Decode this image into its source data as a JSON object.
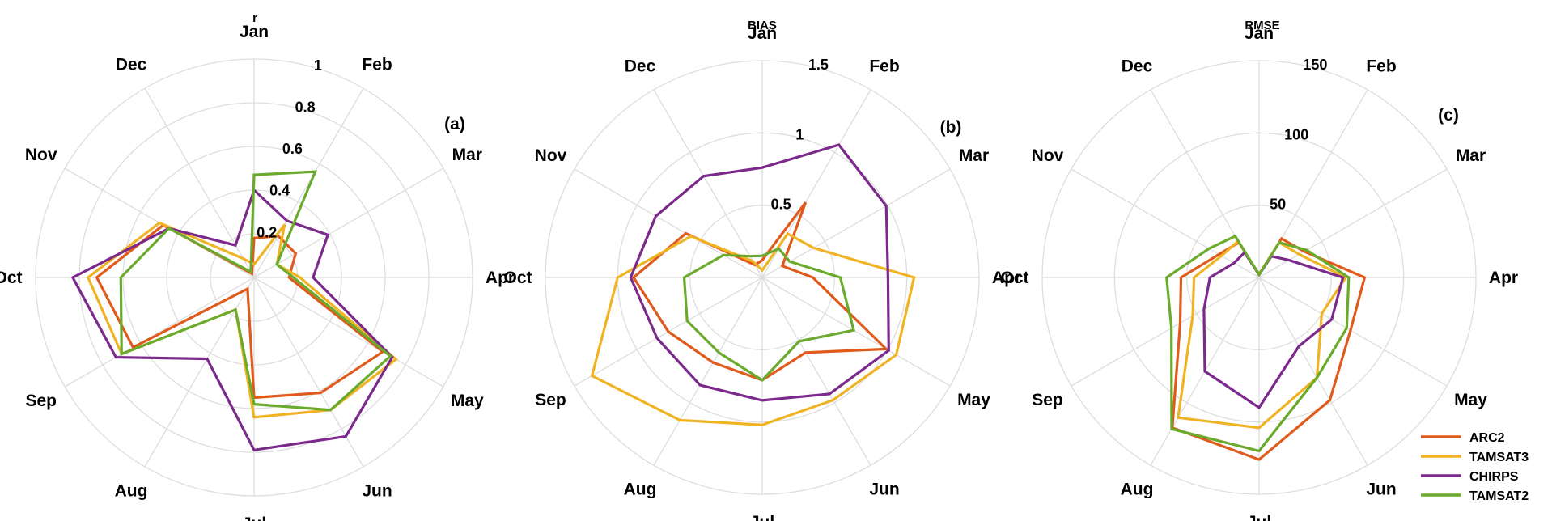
{
  "colors": {
    "ARC2": "#e05a1c",
    "TAMSAT3": "#f0b323",
    "CHIRPS": "#7b2a8c",
    "TAMSAT2": "#6aaa2c",
    "grid": "#dddddd"
  },
  "legend": [
    "ARC2",
    "TAMSAT3",
    "CHIRPS",
    "TAMSAT2"
  ],
  "chart_data": [
    {
      "type": "radar",
      "panel": "(a)",
      "title": "r",
      "categories": [
        "Jan",
        "Feb",
        "Mar",
        "Apr",
        "May",
        "Jun",
        "Jul",
        "Aug",
        "Sep",
        "Oct",
        "Nov",
        "Dec"
      ],
      "rlim": [
        0,
        1
      ],
      "rings": [
        0.2,
        0.4,
        0.6,
        0.8,
        1.0
      ],
      "ring_labels": [
        "0.2",
        "0.4",
        "0.6",
        "0.8",
        "1"
      ],
      "grid": true,
      "series": [
        {
          "name": "ARC2",
          "values": [
            0.18,
            0.22,
            0.22,
            0.16,
            0.68,
            0.61,
            0.55,
            0.06,
            0.64,
            0.72,
            0.48,
            0.02
          ]
        },
        {
          "name": "TAMSAT3",
          "values": [
            0.06,
            0.28,
            0.12,
            0.21,
            0.75,
            0.7,
            0.64,
            0.17,
            0.7,
            0.76,
            0.5,
            0.1
          ]
        },
        {
          "name": "CHIRPS",
          "values": [
            0.4,
            0.3,
            0.39,
            0.27,
            0.73,
            0.84,
            0.79,
            0.43,
            0.73,
            0.83,
            0.45,
            0.17
          ]
        },
        {
          "name": "TAMSAT2",
          "values": [
            0.47,
            0.56,
            0.12,
            0.18,
            0.72,
            0.7,
            0.58,
            0.17,
            0.7,
            0.61,
            0.45,
            0.03
          ]
        }
      ]
    },
    {
      "type": "radar",
      "panel": "(b)",
      "title": "BIAS",
      "categories": [
        "Jan",
        "Feb",
        "Mar",
        "Apr",
        "May",
        "Jun",
        "Jul",
        "Aug",
        "Sep",
        "Oct",
        "Nov",
        "Dec"
      ],
      "rlim": [
        0,
        1.5
      ],
      "rings": [
        0.5,
        1.0,
        1.5
      ],
      "ring_labels": [
        "0.5",
        "1",
        "1.5"
      ],
      "grid": true,
      "series": [
        {
          "name": "ARC2",
          "values": [
            0.12,
            0.6,
            0.16,
            0.35,
            0.99,
            0.6,
            0.71,
            0.68,
            0.75,
            0.89,
            0.61,
            0.1
          ]
        },
        {
          "name": "TAMSAT3",
          "values": [
            0.05,
            0.35,
            0.41,
            1.05,
            1.07,
            0.98,
            1.02,
            1.14,
            1.36,
            1.0,
            0.57,
            0.13
          ]
        },
        {
          "name": "CHIRPS",
          "values": [
            0.76,
            1.06,
            0.99,
            0.87,
            1.01,
            0.93,
            0.85,
            0.86,
            0.84,
            0.91,
            0.85,
            0.81
          ]
        },
        {
          "name": "TAMSAT2",
          "values": [
            0.15,
            0.23,
            0.22,
            0.54,
            0.73,
            0.51,
            0.71,
            0.6,
            0.6,
            0.54,
            0.31,
            0.17
          ]
        }
      ]
    },
    {
      "type": "radar",
      "panel": "(c)",
      "title": "RMSE",
      "categories": [
        "Jan",
        "Feb",
        "Mar",
        "Apr",
        "May",
        "Jun",
        "Jul",
        "Aug",
        "Sep",
        "Oct",
        "Nov",
        "Dec"
      ],
      "rlim": [
        0,
        150
      ],
      "rings": [
        50,
        100,
        150
      ],
      "ring_labels": [
        "50",
        "100",
        "150"
      ],
      "grid": true,
      "series": [
        {
          "name": "ARC2",
          "values": [
            2,
            31,
            36,
            73,
            73,
            98,
            126,
            120,
            63,
            54,
            32,
            28
          ]
        },
        {
          "name": "TAMSAT3",
          "values": [
            2,
            28,
            32,
            60,
            50,
            80,
            104,
            112,
            53,
            45,
            30,
            29
          ]
        },
        {
          "name": "CHIRPS",
          "values": [
            2,
            17,
            24,
            58,
            58,
            55,
            90,
            75,
            44,
            34,
            20,
            20
          ]
        },
        {
          "name": "TAMSAT2",
          "values": [
            2,
            28,
            38,
            62,
            70,
            80,
            120,
            121,
            70,
            64,
            40,
            33
          ]
        }
      ]
    }
  ]
}
